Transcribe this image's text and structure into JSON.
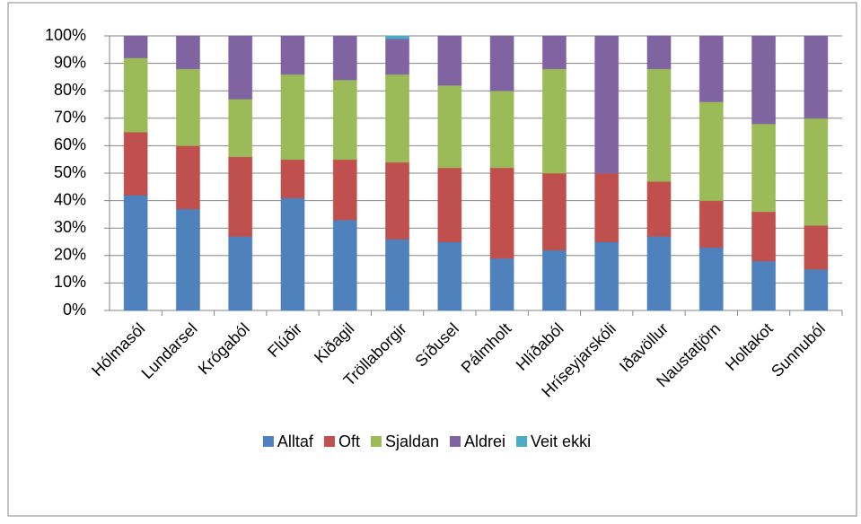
{
  "chart_data": {
    "type": "stacked_bar",
    "categories": [
      "Hólmasól",
      "Lundarsel",
      "Krógaból",
      "Flúðir",
      "Kiðagil",
      "Tröllaborgir",
      "Síðusel",
      "Pálmholt",
      "Hlíðaból",
      "Hríseyjarskóli",
      "Iðavöllur",
      "Naustatjörn",
      "Holtakot",
      "Sunnuból"
    ],
    "series": [
      {
        "name": "Alltaf",
        "color": "#4f81bd",
        "values": [
          42,
          37,
          27,
          41,
          33,
          26,
          25,
          19,
          22,
          25,
          27,
          23,
          18,
          15
        ]
      },
      {
        "name": "Oft",
        "color": "#c0504d",
        "values": [
          23,
          23,
          29,
          14,
          22,
          28,
          27,
          33,
          28,
          25,
          20,
          17,
          18,
          16
        ]
      },
      {
        "name": "Sjaldan",
        "color": "#9bbb59",
        "values": [
          27,
          28,
          21,
          31,
          29,
          32,
          30,
          28,
          38,
          0,
          41,
          36,
          32,
          39
        ]
      },
      {
        "name": "Aldrei",
        "color": "#8064a2",
        "values": [
          8,
          12,
          23,
          14,
          16,
          13,
          18,
          20,
          12,
          50,
          12,
          24,
          32,
          30
        ]
      },
      {
        "name": "Veit ekki",
        "color": "#4bacc6",
        "values": [
          0,
          0,
          0,
          0,
          0,
          1,
          0,
          0,
          0,
          0,
          0,
          0,
          0,
          0
        ]
      }
    ],
    "ylim": [
      0,
      100
    ],
    "yticks": [
      {
        "value": 0,
        "label": "0%"
      },
      {
        "value": 10,
        "label": "10%"
      },
      {
        "value": 20,
        "label": "20%"
      },
      {
        "value": 30,
        "label": "30%"
      },
      {
        "value": 40,
        "label": "40%"
      },
      {
        "value": 50,
        "label": "50%"
      },
      {
        "value": 60,
        "label": "60%"
      },
      {
        "value": 70,
        "label": "70%"
      },
      {
        "value": 80,
        "label": "80%"
      },
      {
        "value": 90,
        "label": "90%"
      },
      {
        "value": 100,
        "label": "100%"
      }
    ],
    "grid": true,
    "legend": "bottom"
  }
}
